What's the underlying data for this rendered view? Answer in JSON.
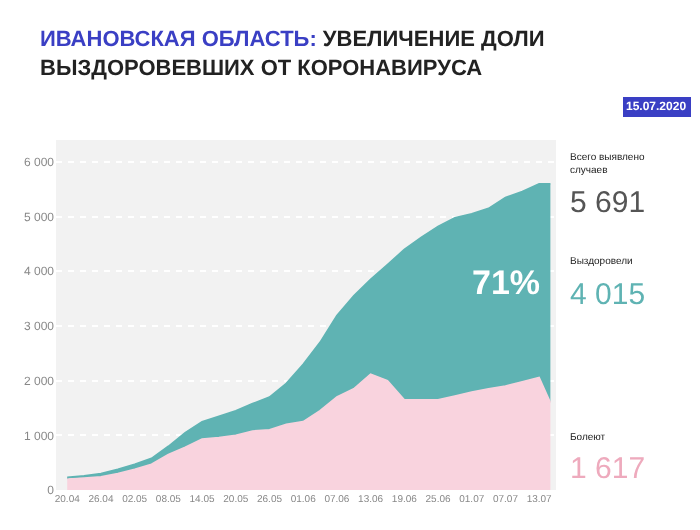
{
  "chart_data": {
    "type": "area",
    "stacked": true,
    "title": "ИВАНОВСКАЯ ОБЛАСТЬ: УВЕЛИЧЕНИЕ ДОЛИ\nВЫЗДОРОВЕВШИХ ОТ КОРОНАВИРУСА",
    "subtitle": "15.07.2020",
    "x": [
      "--04-20",
      "--04-23",
      "--04-26",
      "--04-29",
      "--05-02",
      "--05-05",
      "--05-08",
      "--05-11",
      "--05-14",
      "--05-17",
      "--05-20",
      "--05-23",
      "--05-26",
      "--05-29",
      "--06-01",
      "--06-04",
      "--06-07",
      "--06-10",
      "--06-13",
      "--06-16",
      "--06-19",
      "--06-22",
      "--06-25",
      "--06-28",
      "--07-01",
      "--07-04",
      "--07-07",
      "--07-10",
      "--07-13",
      "--07-15"
    ],
    "series": [
      {
        "color": "#f9d3de",
        "values": [
          200,
          220,
          240,
          300,
          380,
          470,
          650,
          780,
          930,
          960,
          1000,
          1080,
          1100,
          1200,
          1250,
          1450,
          1700,
          1850,
          2120,
          2000,
          1650,
          1650,
          1650,
          1720,
          1790,
          1850,
          1900,
          1980,
          2060,
          1600
        ]
      },
      {
        "color": "#5fb3b3",
        "values": [
          30,
          40,
          60,
          80,
          90,
          110,
          150,
          270,
          320,
          390,
          450,
          500,
          600,
          750,
          1050,
          1250,
          1490,
          1700,
          1730,
          2120,
          2750,
          2970,
          3170,
          3260,
          3260,
          3300,
          3450,
          3480,
          3540,
          4000
        ]
      }
    ],
    "ylim": [
      0,
      6400
    ],
    "yticks": [
      0,
      {
        "value": 1000,
        "label": "1 000"
      },
      {
        "value": 2000,
        "label": "2 000"
      },
      {
        "value": 3000,
        "label": "3 000"
      },
      {
        "value": 4000,
        "label": "4 000"
      },
      {
        "value": 5000,
        "label": "5 000"
      },
      {
        "value": 6000,
        "label": "6 000"
      }
    ],
    "xlim": [
      "--04-18",
      "--07-16"
    ],
    "xticks": [
      {
        "value": "--04-20",
        "label": "20.04"
      },
      {
        "value": "--04-26",
        "label": "26.04"
      },
      {
        "value": "--05-02",
        "label": "02.05"
      },
      {
        "value": "--05-08",
        "label": "08.05"
      },
      {
        "value": "--05-14",
        "label": "14.05"
      },
      {
        "value": "--05-20",
        "label": "20.05"
      },
      {
        "value": "--05-26",
        "label": "26.05"
      },
      {
        "value": "--06-01",
        "label": "01.06"
      },
      {
        "value": "--06-07",
        "label": "07.06"
      },
      {
        "value": "--06-13",
        "label": "13.06"
      },
      {
        "value": "--06-19",
        "label": "19.06"
      },
      {
        "value": "--06-25",
        "label": "25.06"
      },
      {
        "value": "--07-01",
        "label": "01.07"
      },
      {
        "value": "--07-07",
        "label": "07.07"
      },
      {
        "value": "--07-13",
        "label": "13.07"
      }
    ],
    "grid": "y",
    "annotations": [
      "71%",
      "Всего выявлено\nслучаев",
      "5 691",
      "Выздоровели",
      "4 015",
      "Болеют",
      "1 617"
    ]
  }
}
